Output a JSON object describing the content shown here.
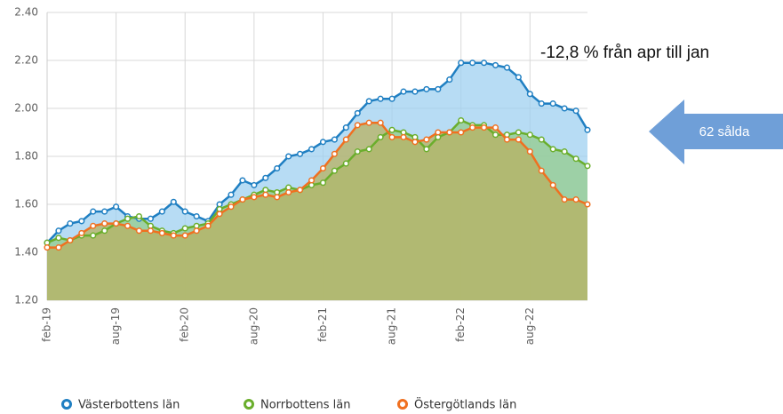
{
  "chart_data": {
    "type": "area",
    "categories": [
      "feb-19",
      null,
      null,
      null,
      null,
      null,
      "aug-19",
      null,
      null,
      null,
      null,
      null,
      "feb-20",
      null,
      null,
      null,
      null,
      null,
      "aug-20",
      null,
      null,
      null,
      null,
      null,
      "feb-21",
      null,
      null,
      null,
      null,
      null,
      "aug-21",
      null,
      null,
      null,
      null,
      null,
      "feb-22",
      null,
      null,
      null,
      null,
      null,
      "aug-22",
      null,
      null,
      null,
      null,
      null
    ],
    "series": [
      {
        "name": "Västerbottens län",
        "color": "#1f7fc2",
        "fill": "#9fd0f0",
        "values": [
          1.44,
          1.49,
          1.52,
          1.53,
          1.57,
          1.57,
          1.59,
          1.55,
          1.54,
          1.54,
          1.57,
          1.61,
          1.57,
          1.55,
          1.53,
          1.6,
          1.64,
          1.7,
          1.68,
          1.71,
          1.75,
          1.8,
          1.81,
          1.83,
          1.86,
          1.87,
          1.92,
          1.98,
          2.03,
          2.04,
          2.04,
          2.07,
          2.07,
          2.08,
          2.08,
          2.12,
          2.19,
          2.19,
          2.19,
          2.18,
          2.17,
          2.13,
          2.06,
          2.02,
          2.02,
          2.0,
          1.99,
          1.91
        ]
      },
      {
        "name": "Norrbottens län",
        "color": "#6aae2c",
        "fill": "#94cc8c",
        "values": [
          1.44,
          1.46,
          1.45,
          1.47,
          1.47,
          1.49,
          1.52,
          1.54,
          1.55,
          1.51,
          1.49,
          1.48,
          1.5,
          1.51,
          1.52,
          1.58,
          1.6,
          1.62,
          1.64,
          1.66,
          1.65,
          1.67,
          1.66,
          1.68,
          1.69,
          1.74,
          1.77,
          1.82,
          1.83,
          1.88,
          1.91,
          1.9,
          1.88,
          1.83,
          1.88,
          1.9,
          1.95,
          1.93,
          1.93,
          1.89,
          1.89,
          1.9,
          1.89,
          1.87,
          1.83,
          1.82,
          1.79,
          1.76
        ]
      },
      {
        "name": "Östergötlands län",
        "color": "#f07020",
        "fill": "#b8b260",
        "values": [
          1.42,
          1.42,
          1.45,
          1.48,
          1.51,
          1.52,
          1.52,
          1.51,
          1.49,
          1.49,
          1.48,
          1.47,
          1.47,
          1.49,
          1.51,
          1.56,
          1.59,
          1.62,
          1.63,
          1.64,
          1.63,
          1.65,
          1.66,
          1.7,
          1.75,
          1.81,
          1.87,
          1.93,
          1.94,
          1.94,
          1.88,
          1.88,
          1.86,
          1.87,
          1.9,
          1.9,
          1.9,
          1.92,
          1.92,
          1.92,
          1.87,
          1.87,
          1.82,
          1.74,
          1.68,
          1.62,
          1.62,
          1.6
        ]
      }
    ],
    "ylim": [
      1.2,
      2.4
    ],
    "yticks": [
      {
        "value": 1.2,
        "label": "1.20"
      },
      {
        "value": 1.4,
        "label": "1.40"
      },
      {
        "value": 1.6,
        "label": "1.60"
      },
      {
        "value": 1.8,
        "label": "1.80"
      },
      {
        "value": 2.0,
        "label": "2.00"
      },
      {
        "value": 2.2,
        "label": "2.20"
      },
      {
        "value": 2.4,
        "label": "2.40"
      }
    ],
    "grid": true,
    "annotations": [
      "-12,8 % från apr till jan",
      "62 sålda"
    ]
  }
}
